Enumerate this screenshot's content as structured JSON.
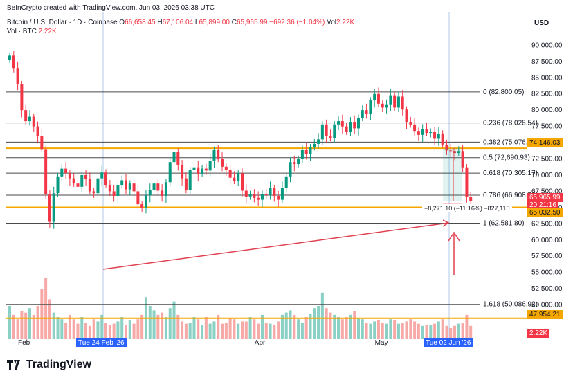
{
  "header": {
    "credit": "BeInCrypto created with TradingView.com, Jun 03, 2026 03:38 UTC",
    "symbol": "Bitcoin / U.S. Dollar · 1D · Coinbase",
    "o_label": "O",
    "o": "66,658.45",
    "h_label": "H",
    "h": "67,106.04",
    "l_label": "L",
    "l": "65,899.00",
    "c_label": "C",
    "c": "65,965.99",
    "change": "−692.36 (−1.04%)",
    "vol_label": "Vol",
    "vol": "2.22K",
    "vol_row_label": "Vol · BTC",
    "vol_row_value": "2.22K"
  },
  "axis": {
    "currency": "USD"
  },
  "price_tags": {
    "level_upper": "74,146.03",
    "current": "65,965.99",
    "countdown": "20:21:16",
    "level_lower": "65,032.50",
    "vol_level": "47,954.21",
    "vol_value": "2.22K"
  },
  "date_tags": {
    "left": "Tue 24 Feb '26",
    "right": "Tue 02 Jun '26"
  },
  "measure_label": "−8,271.10 (−11.16%) −827,110",
  "logo": {
    "text": "TradingView"
  },
  "colors": {
    "up": "#089981",
    "down": "#f23645",
    "orange": "#f5a700",
    "upVol": "#8ad0c4",
    "downVol": "#f7a9a7"
  },
  "chart_data": {
    "type": "candlestick",
    "y_axis": {
      "min": 47500,
      "max": 91000,
      "ticks": [
        "90,000.00",
        "87,500.00",
        "85,000.00",
        "82,500.00",
        "80,000.00",
        "77,500.00",
        "75,000.00",
        "72,500.00",
        "70,000.00",
        "67,500.00",
        "65,000.00",
        "62,500.00",
        "60,000.00",
        "57,500.00",
        "55,000.00",
        "52,500.00",
        "50,000.00"
      ],
      "tick_values": [
        90000,
        87500,
        85000,
        82500,
        80000,
        77500,
        75000,
        72500,
        70000,
        67500,
        65000,
        62500,
        60000,
        57500,
        55000,
        52500,
        50000
      ]
    },
    "x_axis": {
      "labels": [
        {
          "text": "Feb",
          "day": 0
        },
        {
          "text": "Apr",
          "day": 59
        },
        {
          "text": "May",
          "day": 89
        }
      ]
    },
    "fib_levels": [
      {
        "label": "0 (82,800.05)",
        "value": 82800.05
      },
      {
        "label": "0.236 (78,028.54)",
        "value": 78028.54
      },
      {
        "label": "0.382 (75,076.68)",
        "value": 75076.68
      },
      {
        "label": "0.5 (72,690.93)",
        "value": 72690.93
      },
      {
        "label": "0.618 (70,305.17)",
        "value": 70305.17
      },
      {
        "label": "0.786 (66,908.51)",
        "value": 66908.51
      },
      {
        "label": "1 (62,581.80)",
        "value": 62581.8
      },
      {
        "label": "1.618 (50,086.92)",
        "value": 50086.92
      }
    ],
    "horizontal_levels": [
      74146.03,
      65032.5,
      47954.21
    ],
    "candles_close": [
      88400,
      86500,
      84000,
      80000,
      78300,
      79000,
      77500,
      76000,
      74000,
      67000,
      62800,
      67200,
      69800,
      71000,
      70300,
      69500,
      68700,
      68200,
      70000,
      69400,
      67500,
      67200,
      69500,
      70400,
      68500,
      67500,
      66800,
      68500,
      69200,
      67800,
      68700,
      67500,
      65500,
      65000,
      66900,
      67700,
      68700,
      67600,
      66800,
      68900,
      72000,
      73600,
      71600,
      69500,
      67700,
      70800,
      71200,
      70200,
      71000,
      70700,
      72200,
      73900,
      72500,
      71300,
      70800,
      69600,
      69100,
      70300,
      67600,
      66700,
      67100,
      66500,
      66200,
      67100,
      66900,
      68000,
      66800,
      66200,
      68000,
      69800,
      72000,
      71700,
      72500,
      73900,
      73300,
      74300,
      74800,
      75500,
      77800,
      76000,
      75700,
      77800,
      78300,
      77500,
      76700,
      78200,
      77200,
      78800,
      80000,
      79400,
      81500,
      82500,
      81000,
      80400,
      80900,
      82300,
      80400,
      82100,
      80100,
      78200,
      77800,
      76800,
      76200,
      77100,
      76500,
      76700,
      75600,
      76400,
      74700,
      73800,
      73700,
      73400,
      73700,
      71200,
      66658,
      65966
    ],
    "volume_bars": [
      30,
      22,
      18,
      25,
      24,
      28,
      22,
      30,
      45,
      55,
      36,
      24,
      20,
      18,
      15,
      22,
      18,
      14,
      20,
      15,
      12,
      18,
      16,
      22,
      15,
      13,
      14,
      16,
      20,
      13,
      17,
      14,
      18,
      22,
      38,
      30,
      26,
      22,
      24,
      20,
      28,
      34,
      22,
      16,
      14,
      15,
      20,
      18,
      13,
      20,
      14,
      16,
      22,
      14,
      15,
      19,
      18,
      14,
      16,
      16,
      20,
      18,
      14,
      22,
      15,
      14,
      13,
      16,
      22,
      24,
      26,
      22,
      18,
      15,
      20,
      23,
      28,
      30,
      42,
      28,
      24,
      22,
      20,
      18,
      20,
      22,
      25,
      19,
      18,
      15,
      14,
      16,
      17,
      15,
      14,
      18,
      17,
      14,
      15,
      16,
      18,
      16,
      14,
      12,
      13,
      13,
      14,
      16,
      18,
      12,
      10,
      12,
      14,
      15,
      22,
      12
    ]
  }
}
